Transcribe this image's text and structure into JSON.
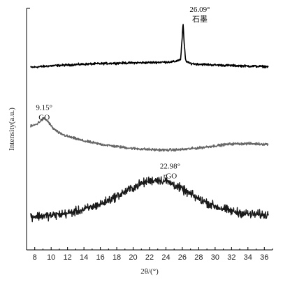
{
  "chart_data": {
    "type": "line",
    "xlabel": "2θ/(°)",
    "ylabel": "Intensity(a.u.)",
    "xlim": [
      7,
      37
    ],
    "xticks": [
      8,
      10,
      12,
      14,
      16,
      18,
      20,
      22,
      24,
      26,
      28,
      30,
      32,
      34,
      36
    ],
    "yticks": "none",
    "grid": false,
    "legend": "none",
    "series": [
      {
        "name": "石墨",
        "color": "#000000",
        "noise": 0.6,
        "x": [
          7.5,
          10,
          14,
          18,
          22,
          24,
          25,
          25.8,
          26.0,
          26.09,
          26.2,
          26.4,
          26.8,
          27.5,
          30,
          34,
          36.5
        ],
        "y": [
          98.0,
          98.6,
          99.2,
          99.6,
          99.8,
          100.0,
          100.1,
          101.0,
          110.0,
          114.5,
          108.0,
          100.6,
          99.6,
          99.3,
          98.9,
          98.5,
          98.3
        ]
      },
      {
        "name": "GO",
        "color": "#666666",
        "noise": 0.7,
        "x": [
          7.5,
          8.2,
          8.8,
          9.15,
          9.6,
          10.2,
          11,
          12,
          14,
          16,
          18,
          20,
          22,
          24,
          26,
          28,
          30,
          32,
          34,
          36.5
        ],
        "y": [
          76.0,
          76.8,
          78.3,
          79.0,
          77.9,
          75.4,
          73.5,
          72.3,
          70.6,
          69.4,
          68.5,
          67.8,
          67.4,
          67.2,
          67.4,
          68.0,
          68.8,
          69.5,
          69.6,
          69.4
        ]
      },
      {
        "name": "rGO",
        "color": "#1a1a1a",
        "noise": 2.4,
        "x": [
          7.5,
          10,
          12,
          14,
          16,
          18,
          20,
          21,
          22,
          22.98,
          24,
          25,
          26,
          28,
          30,
          32,
          34,
          36.5
        ],
        "y": [
          42.5,
          42.8,
          43.6,
          45.0,
          47.0,
          50.0,
          53.2,
          54.7,
          55.8,
          56.1,
          55.6,
          54.3,
          52.5,
          49.0,
          46.2,
          44.4,
          43.4,
          43.0
        ]
      }
    ],
    "annotations": [
      {
        "angle": "26.09°",
        "label": "石墨",
        "x": 26.09,
        "y": 114.5
      },
      {
        "angle": "9.15°",
        "label": "GO",
        "x": 9.15,
        "y": 79.0
      },
      {
        "angle": "22.98°",
        "label": "rGO",
        "x": 22.98,
        "y": 56.1
      }
    ]
  }
}
